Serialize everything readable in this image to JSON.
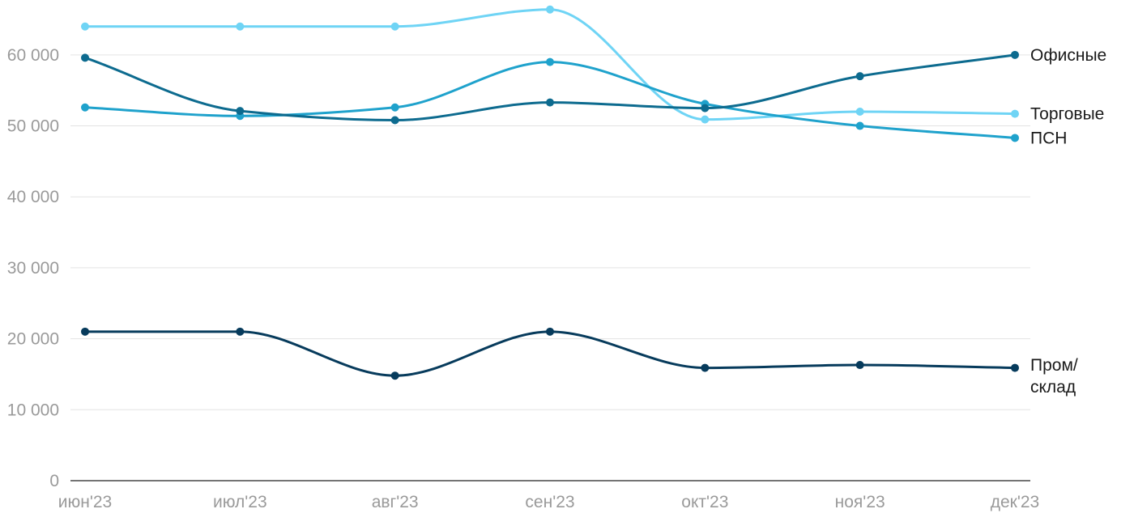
{
  "chart_data": {
    "type": "line",
    "categories": [
      "июн'23",
      "июл'23",
      "авг'23",
      "сен'23",
      "окт'23",
      "ноя'23",
      "дек'23"
    ],
    "ylim": [
      0,
      65000
    ],
    "yticks": [
      0,
      10000,
      20000,
      30000,
      40000,
      50000,
      60000
    ],
    "ytick_labels": [
      "0",
      "10 000",
      "20 000",
      "30 000",
      "40 000",
      "50 000",
      "60 000"
    ],
    "grid": true,
    "series": [
      {
        "name": "Торговые",
        "color": "#6fd4f5",
        "values": [
          64000,
          64000,
          64000,
          66400,
          50900,
          52000,
          51700
        ],
        "label_lines": [
          "Торговые"
        ]
      },
      {
        "name": "ПСН",
        "color": "#1fa2cc",
        "values": [
          52600,
          51400,
          52600,
          59000,
          53100,
          50000,
          48300
        ],
        "label_lines": [
          "ПСН"
        ]
      },
      {
        "name": "Офисные",
        "color": "#0d6b8f",
        "values": [
          59600,
          52100,
          50800,
          53300,
          52500,
          57000,
          60000
        ],
        "label_lines": [
          "Офисные"
        ]
      },
      {
        "name": "Пром/склад",
        "color": "#073b5c",
        "values": [
          21000,
          21000,
          14800,
          21000,
          15900,
          16300,
          15900
        ],
        "label_lines": [
          "Пром/",
          "склад"
        ]
      }
    ]
  }
}
